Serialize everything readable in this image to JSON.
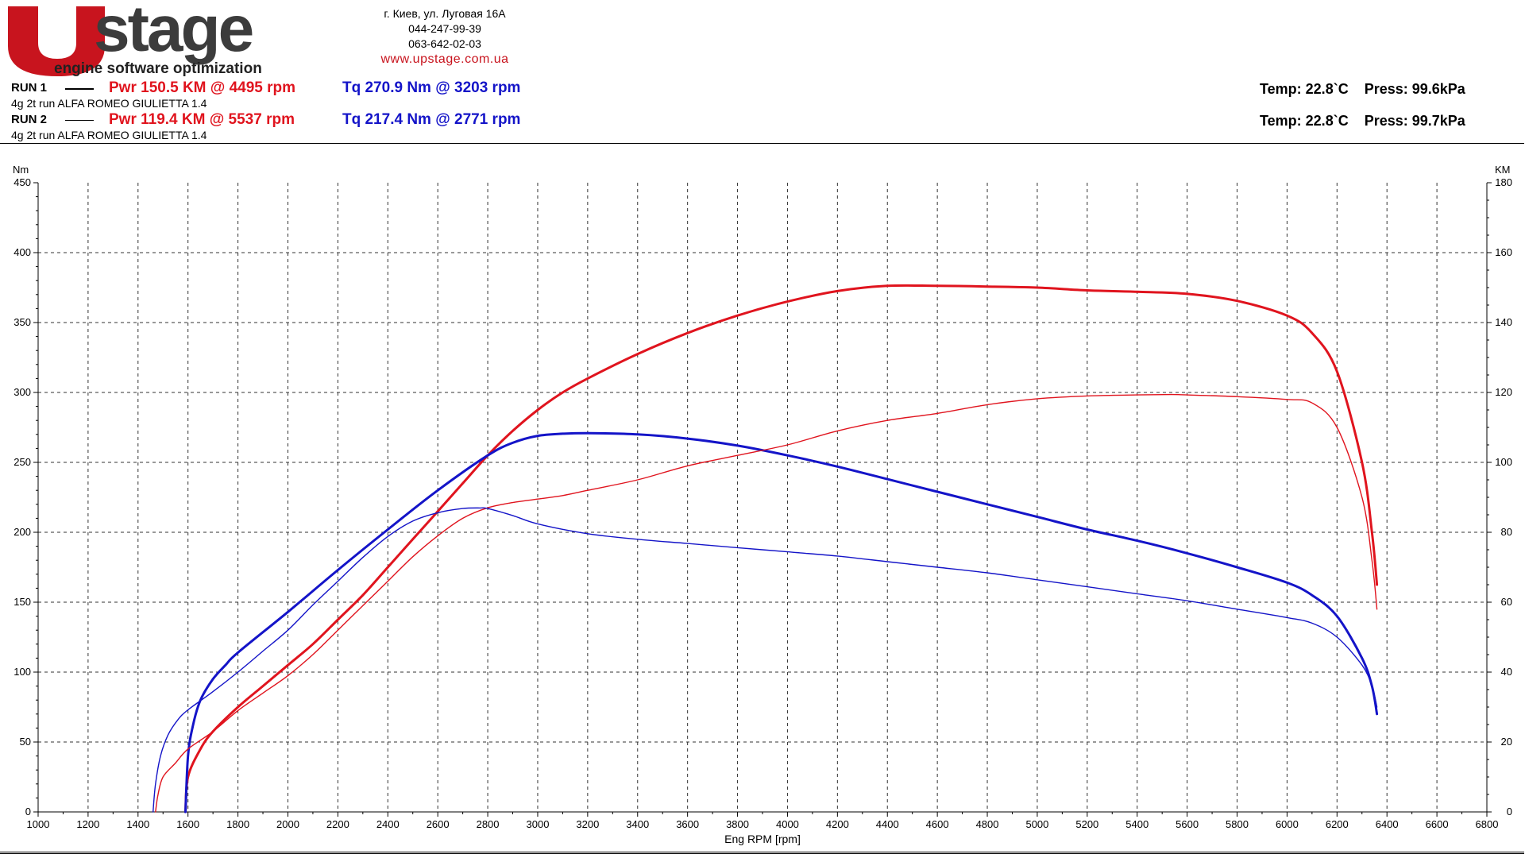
{
  "header": {
    "brand": "stage",
    "tagline": "engine software optimization",
    "address": "г. Киев, ул. Луговая 16А",
    "phone1": "044-247-99-39",
    "phone2": "063-642-02-03",
    "website": "www.upstage.com.ua"
  },
  "runs": [
    {
      "label": "RUN 1",
      "description": "4g  2t run ALFA ROMEO GIULIETTA 1.4",
      "power_text": "Pwr  150.5 KM @ 4495 rpm",
      "torque_text": "Tq 270.9 Nm @ 3203 rpm",
      "env_text": "Temp: 22.8`C    Press: 99.6kPa"
    },
    {
      "label": "RUN 2",
      "description": "4g  2t run ALFA ROMEO GIULIETTA 1.4",
      "power_text": "Pwr  119.4 KM @ 5537 rpm",
      "torque_text": "Tq 217.4 Nm @ 2771 rpm",
      "env_text": "Temp: 22.8`C    Press: 99.7kPa"
    }
  ],
  "colors": {
    "power": "#e0141e",
    "torque": "#1414c8",
    "brand": "#c8141e",
    "brand_dark": "#3c3c3c"
  },
  "chart_data": {
    "type": "line",
    "xlabel": "Eng RPM [rpm]",
    "ylabel_left": "Nm",
    "ylabel_right": "KM",
    "xlim": [
      1000,
      6800
    ],
    "ylim_left": [
      0,
      450
    ],
    "ylim_right": [
      0,
      180
    ],
    "x_ticks": [
      1000,
      1200,
      1400,
      1600,
      1800,
      2000,
      2200,
      2400,
      2600,
      2800,
      3000,
      3200,
      3400,
      3600,
      3800,
      4000,
      4200,
      4400,
      4600,
      4800,
      5000,
      5200,
      5400,
      5600,
      5800,
      6000,
      6200,
      6400,
      6600,
      6800
    ],
    "y_ticks_left": [
      0,
      50,
      100,
      150,
      200,
      250,
      300,
      350,
      400,
      450
    ],
    "y_ticks_right": [
      0,
      20,
      40,
      60,
      80,
      100,
      120,
      140,
      160,
      180
    ],
    "grid": true,
    "series": [
      {
        "run": "RUN 1",
        "axis": "right",
        "kind": "power",
        "weight": "thick",
        "x": [
          1590,
          1600,
          1650,
          1700,
          1800,
          1900,
          2000,
          2100,
          2200,
          2300,
          2400,
          2500,
          2600,
          2700,
          2800,
          2900,
          3000,
          3100,
          3200,
          3400,
          3600,
          3800,
          4000,
          4200,
          4400,
          4600,
          4800,
          5000,
          5200,
          5400,
          5600,
          5800,
          6000,
          6100,
          6200,
          6300,
          6340,
          6360
        ],
        "y": [
          0,
          10,
          18,
          23,
          30,
          36,
          42,
          48,
          55,
          62,
          70,
          78,
          86,
          94,
          102,
          109,
          115,
          120,
          124,
          131,
          137,
          142,
          146,
          149,
          150.5,
          150.5,
          150.3,
          150,
          149.2,
          148.8,
          148.2,
          146.2,
          142,
          137,
          126,
          100,
          80,
          65
        ]
      },
      {
        "run": "RUN 1",
        "axis": "left",
        "kind": "torque",
        "weight": "thick",
        "x": [
          1590,
          1600,
          1620,
          1650,
          1700,
          1750,
          1800,
          2000,
          2200,
          2400,
          2600,
          2800,
          2900,
          3000,
          3100,
          3200,
          3400,
          3600,
          3800,
          4000,
          4200,
          4400,
          4600,
          4800,
          5000,
          5200,
          5400,
          5600,
          5800,
          6000,
          6100,
          6200,
          6300,
          6340,
          6360
        ],
        "y": [
          0,
          40,
          62,
          80,
          95,
          105,
          114,
          143,
          173,
          202,
          230,
          255,
          264,
          269,
          270.5,
          270.9,
          270,
          267,
          262,
          255,
          247,
          238,
          229,
          220,
          211,
          202,
          194,
          185,
          175,
          164,
          155,
          140,
          110,
          90,
          70
        ]
      },
      {
        "run": "RUN 2",
        "axis": "right",
        "kind": "power",
        "weight": "thin",
        "x": [
          1470,
          1480,
          1500,
          1550,
          1600,
          1700,
          1800,
          1900,
          2000,
          2100,
          2200,
          2300,
          2400,
          2500,
          2600,
          2700,
          2800,
          2900,
          3000,
          3100,
          3200,
          3400,
          3600,
          3800,
          4000,
          4200,
          4400,
          4600,
          4800,
          5000,
          5200,
          5400,
          5537,
          5600,
          5800,
          6000,
          6100,
          6200,
          6300,
          6340,
          6360
        ],
        "y": [
          0,
          5,
          10,
          14,
          18,
          23,
          29,
          34,
          39,
          45,
          52,
          59,
          66,
          73,
          79,
          84,
          87,
          88.5,
          89.5,
          90.5,
          92,
          95,
          99,
          102,
          105,
          109,
          112,
          114,
          116.5,
          118.2,
          119,
          119.3,
          119.4,
          119.3,
          118.8,
          118,
          117,
          110,
          90,
          72,
          58
        ]
      },
      {
        "run": "RUN 2",
        "axis": "left",
        "kind": "torque",
        "weight": "thin",
        "x": [
          1460,
          1470,
          1490,
          1520,
          1560,
          1600,
          1700,
          1800,
          1900,
          2000,
          2100,
          2200,
          2300,
          2400,
          2500,
          2600,
          2700,
          2771,
          2800,
          2900,
          3000,
          3200,
          3400,
          3600,
          3800,
          4000,
          4200,
          4400,
          4600,
          4800,
          5000,
          5200,
          5400,
          5600,
          5800,
          6000,
          6100,
          6200,
          6300,
          6340,
          6360
        ],
        "y": [
          0,
          20,
          40,
          55,
          66,
          73,
          86,
          100,
          115,
          130,
          148,
          165,
          182,
          197,
          208,
          214,
          217,
          217.4,
          217,
          212,
          206,
          199,
          195,
          192,
          189,
          186,
          183,
          179,
          175,
          171,
          166,
          161,
          156,
          151,
          145,
          139,
          135,
          125,
          105,
          90,
          75
        ]
      }
    ]
  }
}
